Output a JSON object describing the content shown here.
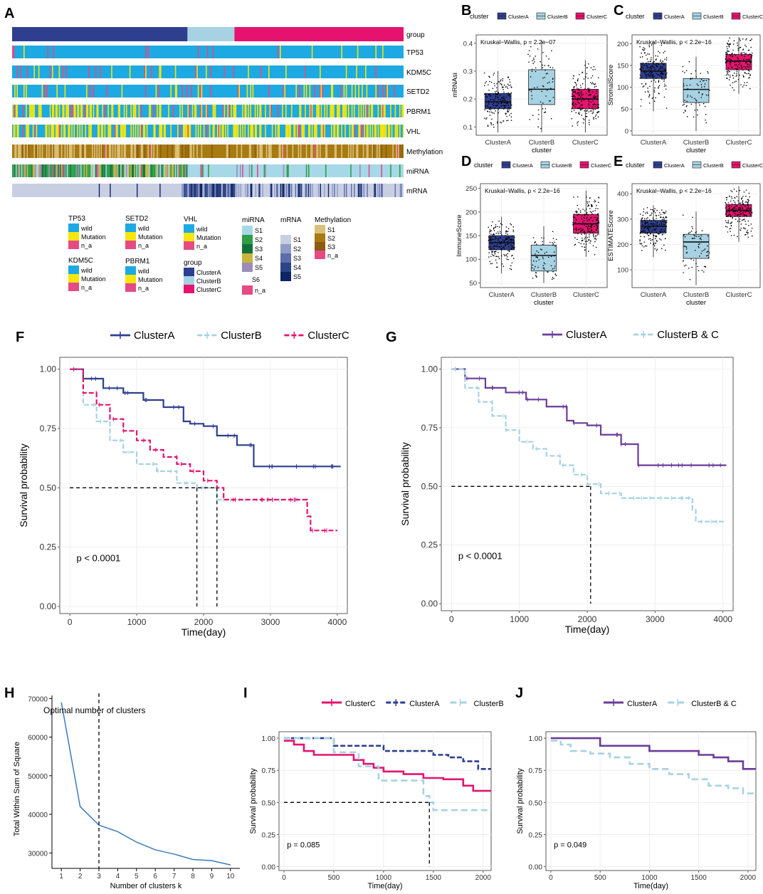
{
  "colors": {
    "clusterA": "#2e3f8f",
    "clusterB": "#a6d2e3",
    "clusterC": "#e5136f",
    "clusterA_purple": "#6a3d9a",
    "clusterBC": "#a6d2e3",
    "wild": "#1da9e1",
    "mutation": "#f6e60b",
    "na": "#e54a84",
    "miRNA": [
      "#a6d8e8",
      "#2e9e47",
      "#14703a",
      "#c9b53c",
      "#9c8cb8",
      "#d0d0d0",
      "#e54a84"
    ],
    "mRNA": [
      "#c9cfe3",
      "#8f9cc6",
      "#5b6eaa",
      "#2e4488",
      "#0f2465"
    ],
    "methylation": [
      "#dbc07a",
      "#a77a12",
      "#8a5b10",
      "#e54a84"
    ]
  },
  "panel_labels": [
    "A",
    "B",
    "C",
    "D",
    "E",
    "F",
    "G",
    "H",
    "I",
    "J"
  ],
  "panelA": {
    "tracks": [
      "group",
      "TP53",
      "KDM5C",
      "SETD2",
      "PBRM1",
      "VHL",
      "Methylation",
      "miRNA",
      "mRNA"
    ],
    "group_fractions": {
      "ClusterA": 0.448,
      "ClusterB": 0.12,
      "ClusterC": 0.432
    },
    "legend": {
      "TP53": {
        "title": "TP53",
        "items": [
          "wild",
          "Mutation",
          "n_a"
        ]
      },
      "KDM5C": {
        "title": "KDM5C",
        "items": [
          "wild",
          "Mutation",
          "n_a"
        ]
      },
      "SETD2": {
        "title": "SETD2",
        "items": [
          "wild",
          "Mutation",
          "n_a"
        ]
      },
      "PBRM1": {
        "title": "PBRM1",
        "items": [
          "wild",
          "Mutation",
          "n_a"
        ]
      },
      "VHL": {
        "title": "VHL",
        "items": [
          "wild",
          "Mutation",
          "n_a"
        ]
      },
      "group": {
        "title": "group",
        "items": [
          "ClusterA",
          "ClusterB",
          "ClusterC"
        ]
      },
      "miRNA": {
        "title": "miRNA",
        "items": [
          "S1",
          "S2",
          "S3",
          "S4",
          "S5",
          "S6",
          "n_a"
        ]
      },
      "mRNA": {
        "title": "mRNA",
        "items": [
          "S1",
          "S2",
          "S3",
          "S4",
          "S5"
        ]
      },
      "Methylation": {
        "title": "Methylation",
        "items": [
          "S1",
          "S2",
          "S3",
          "n_a"
        ]
      }
    }
  },
  "chart_data": [
    {
      "panel": "B",
      "type": "box",
      "legend_title": "cluster",
      "legend": [
        "ClusterA",
        "ClusterB",
        "ClusterC"
      ],
      "annotation": "Kruskal−Wallis, p = 2.2e−07",
      "categories": [
        "ClusterA",
        "ClusterB",
        "ClusterC"
      ],
      "xlabel": "cluster",
      "ylabel": "mRNAsi",
      "ylim": [
        0.07,
        0.43
      ],
      "yticks": [
        0.1,
        0.2,
        0.3,
        0.4
      ],
      "boxes": [
        {
          "min": 0.08,
          "q1": 0.165,
          "median": 0.19,
          "q3": 0.22,
          "max": 0.3
        },
        {
          "min": 0.08,
          "q1": 0.18,
          "median": 0.235,
          "q3": 0.305,
          "max": 0.41
        },
        {
          "min": 0.08,
          "q1": 0.165,
          "median": 0.2,
          "q3": 0.235,
          "max": 0.34
        }
      ]
    },
    {
      "panel": "C",
      "type": "box",
      "legend_title": "cluster",
      "legend": [
        "ClusterA",
        "ClusterB",
        "ClusterC"
      ],
      "annotation": "Kruskal−Wallis, p < 2.2e−16",
      "categories": [
        "ClusterA",
        "ClusterB",
        "ClusterC"
      ],
      "xlabel": "cluster",
      "ylabel": "StromalScore",
      "ylim": [
        -10,
        220
      ],
      "yticks": [
        0,
        50,
        100,
        150,
        200
      ],
      "boxes": [
        {
          "min": 45,
          "q1": 120,
          "median": 137,
          "q3": 155,
          "max": 205
        },
        {
          "min": 0,
          "q1": 65,
          "median": 95,
          "q3": 120,
          "max": 170
        },
        {
          "min": 85,
          "q1": 140,
          "median": 160,
          "q3": 175,
          "max": 215
        }
      ]
    },
    {
      "panel": "D",
      "type": "box",
      "legend_title": "cluster",
      "legend": [
        "ClusterA",
        "ClusterB",
        "ClusterC"
      ],
      "annotation": "Kruskal−Wallis, p < 2.2e−16",
      "categories": [
        "ClusterA",
        "ClusterB",
        "ClusterC"
      ],
      "xlabel": "cluster",
      "ylabel": "ImmuneScore",
      "ylim": [
        40,
        260
      ],
      "yticks": [
        50,
        100,
        150,
        200,
        250
      ],
      "boxes": [
        {
          "min": 70,
          "q1": 120,
          "median": 135,
          "q3": 150,
          "max": 190
        },
        {
          "min": 50,
          "q1": 75,
          "median": 108,
          "q3": 130,
          "max": 170
        },
        {
          "min": 105,
          "q1": 155,
          "median": 175,
          "q3": 195,
          "max": 245
        }
      ]
    },
    {
      "panel": "E",
      "type": "box",
      "legend_title": "cluster",
      "legend": [
        "ClusterA",
        "ClusterB",
        "ClusterC"
      ],
      "annotation": "Kruskal−Wallis, p < 2.2e−16",
      "categories": [
        "ClusterA",
        "ClusterB",
        "ClusterC"
      ],
      "xlabel": "cluster",
      "ylabel": "ESTIMATEScore",
      "ylim": [
        30,
        440
      ],
      "yticks": [
        100,
        200,
        300,
        400
      ],
      "boxes": [
        {
          "min": 150,
          "q1": 245,
          "median": 272,
          "q3": 295,
          "max": 355
        },
        {
          "min": 40,
          "q1": 145,
          "median": 210,
          "q3": 240,
          "max": 330
        },
        {
          "min": 210,
          "q1": 310,
          "median": 335,
          "q3": 358,
          "max": 430
        }
      ]
    },
    {
      "panel": "F",
      "type": "line",
      "legend": [
        "ClusterA",
        "ClusterB",
        "ClusterC"
      ],
      "xlabel": "Time(day)",
      "ylabel": "Survival probability",
      "xlim": [
        -150,
        4150
      ],
      "ylim": [
        -0.03,
        1.05
      ],
      "xticks": [
        0,
        1000,
        2000,
        3000,
        4000
      ],
      "yticks": [
        0.0,
        0.25,
        0.5,
        0.75,
        1.0
      ],
      "yticklabels": [
        "0.00",
        "0.25",
        "0.50",
        "0.75",
        "1.00"
      ],
      "pvalue": "p < 0.0001",
      "median_lines": [
        1900,
        2200
      ],
      "series": [
        {
          "name": "ClusterA",
          "x": [
            0,
            200,
            500,
            800,
            1100,
            1400,
            1700,
            1800,
            2000,
            2200,
            2500,
            2750,
            4050
          ],
          "y": [
            1.0,
            0.96,
            0.92,
            0.9,
            0.87,
            0.84,
            0.78,
            0.77,
            0.76,
            0.72,
            0.68,
            0.59,
            0.59
          ]
        },
        {
          "name": "ClusterB",
          "x": [
            0,
            200,
            400,
            600,
            800,
            1000,
            1300,
            1600,
            1900,
            2200,
            2600,
            3500
          ],
          "y": [
            1.0,
            0.85,
            0.78,
            0.7,
            0.65,
            0.6,
            0.57,
            0.52,
            0.5,
            0.45,
            0.45,
            0.45
          ]
        },
        {
          "name": "ClusterC",
          "x": [
            0,
            200,
            400,
            600,
            800,
            1000,
            1200,
            1400,
            1600,
            1800,
            2000,
            2200,
            2300,
            3500,
            3550,
            3600,
            4000
          ],
          "y": [
            1.0,
            0.9,
            0.85,
            0.79,
            0.74,
            0.7,
            0.66,
            0.63,
            0.6,
            0.57,
            0.53,
            0.5,
            0.45,
            0.45,
            0.38,
            0.32,
            0.32
          ]
        }
      ]
    },
    {
      "panel": "G",
      "type": "line",
      "legend": [
        "ClusterA",
        "ClusterB & C"
      ],
      "xlabel": "Time(day)",
      "ylabel": "Survival probability",
      "xlim": [
        -150,
        4150
      ],
      "ylim": [
        -0.03,
        1.05
      ],
      "xticks": [
        0,
        1000,
        2000,
        3000,
        4000
      ],
      "yticks": [
        0.0,
        0.25,
        0.5,
        0.75,
        1.0
      ],
      "yticklabels": [
        "0.00",
        "0.25",
        "0.50",
        "0.75",
        "1.00"
      ],
      "pvalue": "p < 0.0001",
      "median_lines": [
        2050
      ],
      "series": [
        {
          "name": "ClusterA",
          "x": [
            0,
            200,
            500,
            800,
            1100,
            1400,
            1700,
            1800,
            2000,
            2200,
            2500,
            2750,
            4050
          ],
          "y": [
            1.0,
            0.96,
            0.92,
            0.9,
            0.87,
            0.84,
            0.78,
            0.77,
            0.76,
            0.72,
            0.68,
            0.59,
            0.59
          ]
        },
        {
          "name": "ClusterB & C",
          "x": [
            0,
            200,
            400,
            600,
            800,
            1000,
            1200,
            1400,
            1600,
            1800,
            2000,
            2200,
            2500,
            3500,
            3550,
            3600,
            4000
          ],
          "y": [
            1.0,
            0.92,
            0.86,
            0.8,
            0.74,
            0.69,
            0.66,
            0.63,
            0.59,
            0.55,
            0.51,
            0.47,
            0.45,
            0.45,
            0.4,
            0.35,
            0.34
          ]
        }
      ]
    },
    {
      "panel": "H",
      "type": "line",
      "title": "Optimal number of clusters",
      "xlabel": "Number of clusters k",
      "ylabel": "Total Within Sum of Square",
      "xlim": [
        0.5,
        10.5
      ],
      "ylim": [
        26000,
        70800
      ],
      "xticks": [
        1,
        2,
        3,
        4,
        5,
        6,
        7,
        8,
        9,
        10
      ],
      "yticks": [
        30000,
        40000,
        50000,
        60000,
        70000
      ],
      "optimal_k": 3,
      "x": [
        1,
        2,
        3,
        4,
        5,
        6,
        7,
        8,
        9,
        10
      ],
      "y": [
        69000,
        42000,
        37200,
        35500,
        32800,
        30800,
        29700,
        28300,
        28000,
        26900
      ]
    },
    {
      "panel": "I",
      "type": "line",
      "legend": [
        "ClusterC",
        "ClusterA",
        "ClusterB"
      ],
      "xlabel": "Time(day)",
      "ylabel": "Survival probability",
      "xlim": [
        -50,
        2080
      ],
      "ylim": [
        -0.03,
        1.05
      ],
      "xticks": [
        0,
        500,
        1000,
        1500,
        2000
      ],
      "yticks": [
        0.0,
        0.25,
        0.5,
        0.75,
        1.0
      ],
      "yticklabels": [
        "0.00",
        "0.25",
        "0.50",
        "0.75",
        "1.00"
      ],
      "pvalue": "p = 0.085",
      "median_lines": [
        1460
      ],
      "series": [
        {
          "name": "ClusterC",
          "x": [
            0,
            100,
            200,
            300,
            500,
            700,
            800,
            900,
            1000,
            1200,
            1400,
            1600,
            1800,
            1900,
            2080
          ],
          "y": [
            0.98,
            0.95,
            0.9,
            0.87,
            0.87,
            0.83,
            0.8,
            0.77,
            0.74,
            0.72,
            0.69,
            0.68,
            0.63,
            0.59,
            0.59
          ]
        },
        {
          "name": "ClusterA",
          "x": [
            0,
            450,
            500,
            1000,
            1500,
            1650,
            1800,
            1950,
            2080
          ],
          "y": [
            1.0,
            1.0,
            0.94,
            0.9,
            0.87,
            0.85,
            0.82,
            0.76,
            0.76
          ]
        },
        {
          "name": "ClusterB",
          "x": [
            0,
            480,
            500,
            750,
            950,
            1000,
            1400,
            1460,
            1500,
            2080
          ],
          "y": [
            1.0,
            1.0,
            0.89,
            0.78,
            0.67,
            0.67,
            0.55,
            0.5,
            0.44,
            0.44
          ]
        }
      ]
    },
    {
      "panel": "J",
      "type": "line",
      "legend": [
        "ClusterA",
        "ClusterB & C"
      ],
      "xlabel": "Time(day)",
      "ylabel": "Survival probability",
      "xlim": [
        -50,
        2080
      ],
      "ylim": [
        -0.03,
        1.05
      ],
      "xticks": [
        0,
        500,
        1000,
        1500,
        2000
      ],
      "yticks": [
        0.0,
        0.25,
        0.5,
        0.75,
        1.0
      ],
      "yticklabels": [
        "0.00",
        "0.25",
        "0.50",
        "0.75",
        "1.00"
      ],
      "pvalue": "p = 0.049",
      "series": [
        {
          "name": "ClusterA",
          "x": [
            0,
            450,
            500,
            1000,
            1500,
            1650,
            1800,
            1950,
            2080
          ],
          "y": [
            1.0,
            1.0,
            0.94,
            0.9,
            0.87,
            0.85,
            0.82,
            0.76,
            0.76
          ]
        },
        {
          "name": "ClusterB & C",
          "x": [
            0,
            100,
            200,
            400,
            600,
            800,
            1000,
            1200,
            1400,
            1600,
            1800,
            1950,
            2080
          ],
          "y": [
            0.98,
            0.95,
            0.9,
            0.88,
            0.85,
            0.8,
            0.76,
            0.72,
            0.68,
            0.63,
            0.61,
            0.57,
            0.56
          ]
        }
      ]
    }
  ]
}
